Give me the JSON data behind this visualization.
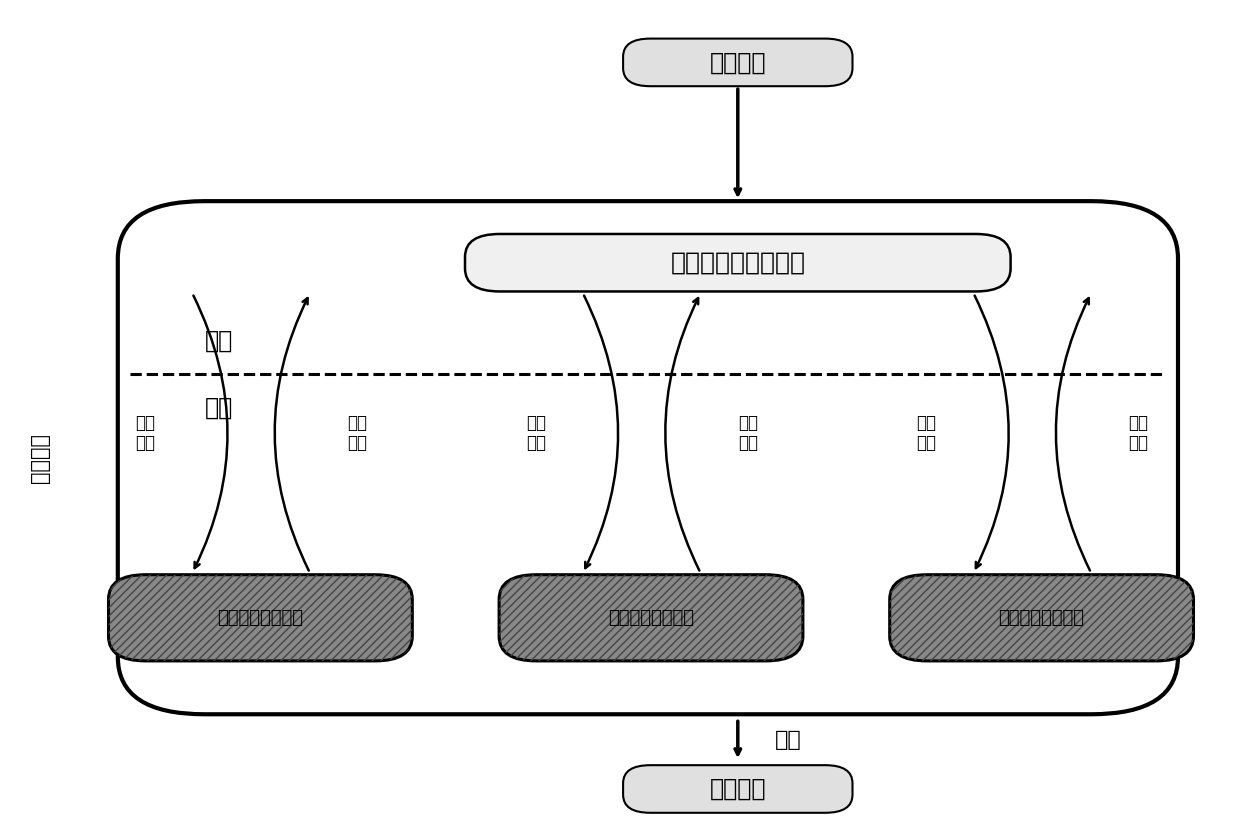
{
  "fig_width": 12.4,
  "fig_height": 8.21,
  "bg_color": "#ffffff",
  "input_label": "输入数据",
  "output_label": "输出数据",
  "converge_label": "收敛",
  "hub_label": "能源集线器优化调度",
  "outer_layer_label": "外层",
  "inner_layer_label": "内层",
  "side_label": "迭代过程",
  "net_load_label": "网络\n负荷",
  "input_constraint_label": "输入\n约束",
  "subsystem_labels": [
    "电力系统最优潮流",
    "热力系统最优潮流",
    "燃气系统最优潮流"
  ]
}
